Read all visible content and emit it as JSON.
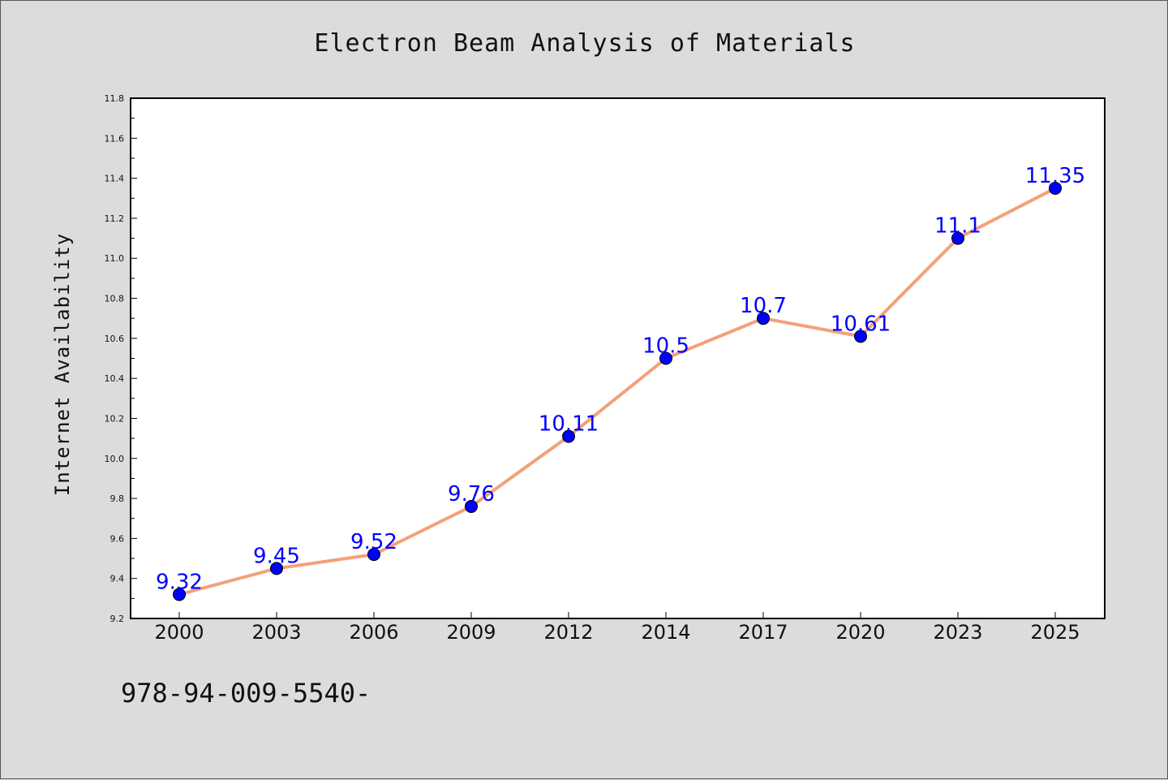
{
  "chart_data": {
    "type": "line",
    "title": "Electron Beam Analysis of Materials",
    "xlabel": "",
    "ylabel": "Internet Availability",
    "categories": [
      "2000",
      "2003",
      "2006",
      "2009",
      "2012",
      "2014",
      "2017",
      "2020",
      "2023",
      "2025"
    ],
    "series": [
      {
        "values": [
          9.32,
          9.45,
          9.52,
          9.76,
          10.11,
          10.5,
          10.7,
          10.61,
          11.1,
          11.35
        ],
        "labels": [
          "9.32",
          "9.45",
          "9.52",
          "9.76",
          "10.11",
          "10.5",
          "10.7",
          "10.61",
          "11.1",
          "11.35"
        ],
        "line_color": "#f4a07a",
        "marker_color": "#0000ff"
      }
    ],
    "ylim": [
      9.2,
      11.8
    ],
    "yticks": [
      "9.2",
      "9.4",
      "9.6",
      "9.8",
      "10.0",
      "10.2",
      "10.4",
      "10.6",
      "10.8",
      "11.0",
      "11.2",
      "11.4",
      "11.6",
      "11.8"
    ],
    "grid": false,
    "legend": "none"
  },
  "footnote": "978-94-009-5540-"
}
